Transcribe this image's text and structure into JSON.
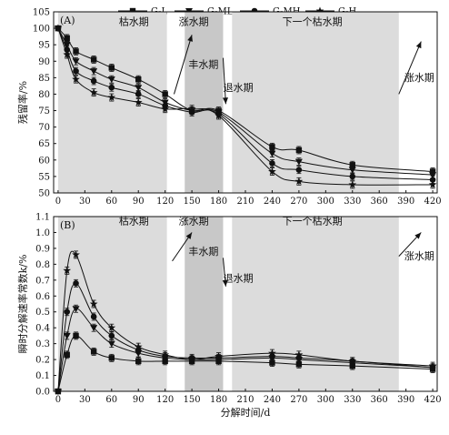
{
  "legend": [
    {
      "name": "G-L",
      "marker": "square"
    },
    {
      "name": "G-ML",
      "marker": "triangle-down"
    },
    {
      "name": "G-MH",
      "marker": "circle"
    },
    {
      "name": "G-H",
      "marker": "star"
    }
  ],
  "colors": {
    "dry_band": "#dcdcdc",
    "flood_band": "#c8c8c8",
    "line": "#111111"
  },
  "chart_data": [
    {
      "type": "line",
      "panel_label": "(A)",
      "ylabel": "残留率/%",
      "xlabel": "",
      "xlim": [
        -5,
        425
      ],
      "ylim": [
        50,
        105
      ],
      "x_ticks": [
        0,
        30,
        60,
        90,
        120,
        150,
        180,
        210,
        240,
        270,
        300,
        330,
        360,
        390,
        420
      ],
      "y_ticks": [
        50,
        55,
        60,
        65,
        70,
        75,
        80,
        85,
        90,
        95,
        100,
        105
      ],
      "periods": [
        {
          "label": "枯水期",
          "start": 0,
          "end": 122,
          "kind": "dry",
          "label_x": 85,
          "label_y": 101
        },
        {
          "label": "涨水期",
          "start": 122,
          "end": 142,
          "kind": "rising",
          "label_x": 152,
          "label_y": 101,
          "arrow": [
            130,
            80,
            150,
            98
          ]
        },
        {
          "label": "丰水期",
          "start": 142,
          "end": 185,
          "kind": "flood",
          "label_x": 163,
          "label_y": 88
        },
        {
          "label": "退水期",
          "start": 185,
          "end": 195,
          "kind": "receding",
          "label_x": 202,
          "label_y": 81,
          "arrow": [
            185,
            91,
            188,
            77
          ]
        },
        {
          "label": "下一个枯水期",
          "start": 195,
          "end": 382,
          "kind": "dry",
          "label_x": 285,
          "label_y": 101
        },
        {
          "label": "涨水期",
          "start": 382,
          "end": 425,
          "kind": "rising",
          "label_x": 405,
          "label_y": 84,
          "arrow": [
            382,
            80,
            407,
            96
          ]
        }
      ],
      "x": [
        0,
        10,
        20,
        40,
        60,
        90,
        120,
        150,
        180,
        240,
        270,
        330,
        420
      ],
      "series": [
        {
          "name": "G-L",
          "marker": "square",
          "values": [
            100,
            97,
            93,
            90.5,
            88,
            84.5,
            80,
            75,
            75,
            64,
            63,
            58.5,
            56.5
          ]
        },
        {
          "name": "G-ML",
          "marker": "triangle-down",
          "values": [
            100,
            95,
            90,
            87,
            84.5,
            82,
            77.5,
            75,
            74.5,
            62,
            59.5,
            57,
            55.5
          ]
        },
        {
          "name": "G-MH",
          "marker": "circle",
          "values": [
            100,
            93.5,
            87,
            84,
            82,
            80,
            76.5,
            74.5,
            74,
            59,
            57,
            55,
            54
          ]
        },
        {
          "name": "G-H",
          "marker": "star",
          "values": [
            100,
            92,
            84.5,
            80.5,
            79,
            77.5,
            75.5,
            75.5,
            73.5,
            56.5,
            53.5,
            52.5,
            52.5
          ]
        }
      ]
    },
    {
      "type": "line",
      "panel_label": "(B)",
      "ylabel": "瞬时分解速率常数k/%",
      "xlabel": "分解时间/d",
      "xlim": [
        -5,
        425
      ],
      "ylim": [
        0,
        1.1
      ],
      "x_ticks": [
        0,
        30,
        60,
        90,
        120,
        150,
        180,
        210,
        240,
        270,
        300,
        330,
        360,
        390,
        420
      ],
      "y_ticks": [
        0,
        0.1,
        0.2,
        0.3,
        0.4,
        0.5,
        0.6,
        0.7,
        0.8,
        0.9,
        1.0,
        1.1
      ],
      "periods": [
        {
          "label": "枯水期",
          "start": 0,
          "end": 122,
          "kind": "dry",
          "label_x": 85,
          "label_y": 1.05
        },
        {
          "label": "涨水期",
          "start": 122,
          "end": 142,
          "kind": "rising",
          "label_x": 152,
          "label_y": 1.05,
          "arrow": [
            128,
            0.82,
            150,
            1.0
          ]
        },
        {
          "label": "丰水期",
          "start": 142,
          "end": 185,
          "kind": "flood",
          "label_x": 163,
          "label_y": 0.86
        },
        {
          "label": "退水期",
          "start": 185,
          "end": 195,
          "kind": "receding",
          "label_x": 202,
          "label_y": 0.69,
          "arrow": [
            185,
            0.84,
            188,
            0.66
          ]
        },
        {
          "label": "下一个枯水期",
          "start": 195,
          "end": 382,
          "kind": "dry",
          "label_x": 285,
          "label_y": 1.05
        },
        {
          "label": "涨水期",
          "start": 382,
          "end": 425,
          "kind": "rising",
          "label_x": 405,
          "label_y": 0.83,
          "arrow": [
            382,
            0.85,
            407,
            1.0
          ]
        }
      ],
      "x": [
        0,
        10,
        20,
        40,
        60,
        90,
        120,
        150,
        180,
        240,
        270,
        330,
        420
      ],
      "series": [
        {
          "name": "G-L",
          "marker": "square",
          "values": [
            0,
            0.23,
            0.35,
            0.25,
            0.21,
            0.19,
            0.19,
            0.19,
            0.19,
            0.18,
            0.17,
            0.16,
            0.14
          ]
        },
        {
          "name": "G-ML",
          "marker": "triangle-down",
          "values": [
            0,
            0.35,
            0.52,
            0.4,
            0.3,
            0.24,
            0.21,
            0.2,
            0.2,
            0.21,
            0.2,
            0.18,
            0.15
          ]
        },
        {
          "name": "G-MH",
          "marker": "circle",
          "values": [
            0,
            0.5,
            0.68,
            0.47,
            0.35,
            0.26,
            0.22,
            0.21,
            0.21,
            0.22,
            0.21,
            0.19,
            0.15
          ]
        },
        {
          "name": "G-H",
          "marker": "star",
          "values": [
            0,
            0.76,
            0.86,
            0.55,
            0.4,
            0.28,
            0.23,
            0.2,
            0.22,
            0.24,
            0.23,
            0.19,
            0.16
          ]
        }
      ]
    }
  ]
}
